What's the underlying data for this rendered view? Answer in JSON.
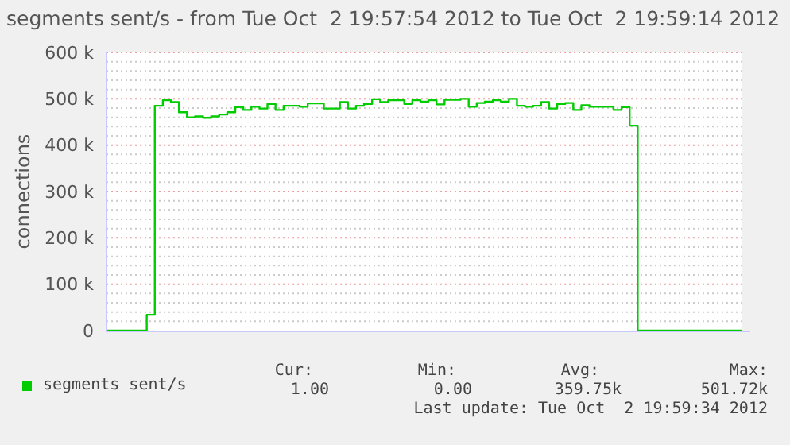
{
  "chart_data": {
    "type": "step",
    "title": "segments sent/s - from Tue Oct  2 19:57:54 2012 to Tue Oct  2 19:59:14 2012",
    "ylabel": "connections",
    "categories": [
      null,
      null,
      null,
      null,
      null,
      null,
      null,
      null,
      null,
      null,
      null,
      null,
      null,
      null,
      null,
      null,
      null,
      null,
      null,
      null,
      null,
      null,
      null,
      null,
      null,
      null,
      null,
      null,
      null,
      null,
      null,
      null,
      null,
      null,
      null,
      null,
      null,
      null,
      null,
      null,
      null,
      null,
      null,
      null,
      null,
      null,
      null,
      null,
      null,
      null,
      null,
      null,
      null,
      null,
      null,
      null,
      null,
      null,
      null,
      null,
      null,
      null,
      null,
      null,
      null,
      null,
      null,
      null,
      null,
      null,
      null,
      null,
      null,
      null,
      null,
      null,
      null,
      null,
      null,
      null
    ],
    "series": [
      {
        "name": "segments sent/s",
        "color": "#00cc00",
        "values": [
          0,
          0,
          0,
          0,
          0,
          34000,
          485000,
          497000,
          493000,
          471000,
          460000,
          462000,
          459000,
          462000,
          466000,
          471000,
          482000,
          476000,
          483000,
          479000,
          489000,
          476000,
          485000,
          485000,
          483000,
          490000,
          490000,
          479000,
          479000,
          493000,
          479000,
          485000,
          489000,
          499000,
          493000,
          497000,
          497000,
          489000,
          497000,
          494000,
          497000,
          488000,
          498000,
          498000,
          500000,
          483000,
          491000,
          494000,
          497000,
          494000,
          500000,
          485000,
          483000,
          485000,
          493000,
          479000,
          489000,
          491000,
          476000,
          486000,
          483000,
          483000,
          483000,
          476000,
          482000,
          442000,
          0,
          0,
          0,
          0,
          0,
          0,
          0,
          0,
          0,
          0,
          0,
          0,
          0,
          0
        ]
      }
    ],
    "ylim": [
      0,
      600000
    ],
    "yticks": [
      {
        "value": 0,
        "label": "0"
      },
      {
        "value": 20000,
        "label": null
      },
      {
        "value": 40000,
        "label": null
      },
      {
        "value": 60000,
        "label": null
      },
      {
        "value": 80000,
        "label": null
      },
      {
        "value": 100000,
        "label": "100 k"
      },
      {
        "value": 120000,
        "label": null
      },
      {
        "value": 140000,
        "label": null
      },
      {
        "value": 160000,
        "label": null
      },
      {
        "value": 180000,
        "label": null
      },
      {
        "value": 200000,
        "label": "200 k"
      },
      {
        "value": 220000,
        "label": null
      },
      {
        "value": 240000,
        "label": null
      },
      {
        "value": 260000,
        "label": null
      },
      {
        "value": 280000,
        "label": null
      },
      {
        "value": 300000,
        "label": "300 k"
      },
      {
        "value": 320000,
        "label": null
      },
      {
        "value": 340000,
        "label": null
      },
      {
        "value": 360000,
        "label": null
      },
      {
        "value": 380000,
        "label": null
      },
      {
        "value": 400000,
        "label": "400 k"
      },
      {
        "value": 420000,
        "label": null
      },
      {
        "value": 440000,
        "label": null
      },
      {
        "value": 460000,
        "label": null
      },
      {
        "value": 480000,
        "label": null
      },
      {
        "value": 500000,
        "label": "500 k"
      },
      {
        "value": 520000,
        "label": null
      },
      {
        "value": 540000,
        "label": null
      },
      {
        "value": 560000,
        "label": null
      },
      {
        "value": 580000,
        "label": null
      },
      {
        "value": 600000,
        "label": "600 k"
      }
    ],
    "grid": "y",
    "legend": "bottom left",
    "annotations": [
      "Cur:",
      "Min:",
      "Avg:",
      "Max:",
      "1.00",
      "0.00",
      "359.75k",
      "501.72k",
      "Last update: Tue Oct  2 19:59:34 2012"
    ]
  }
}
